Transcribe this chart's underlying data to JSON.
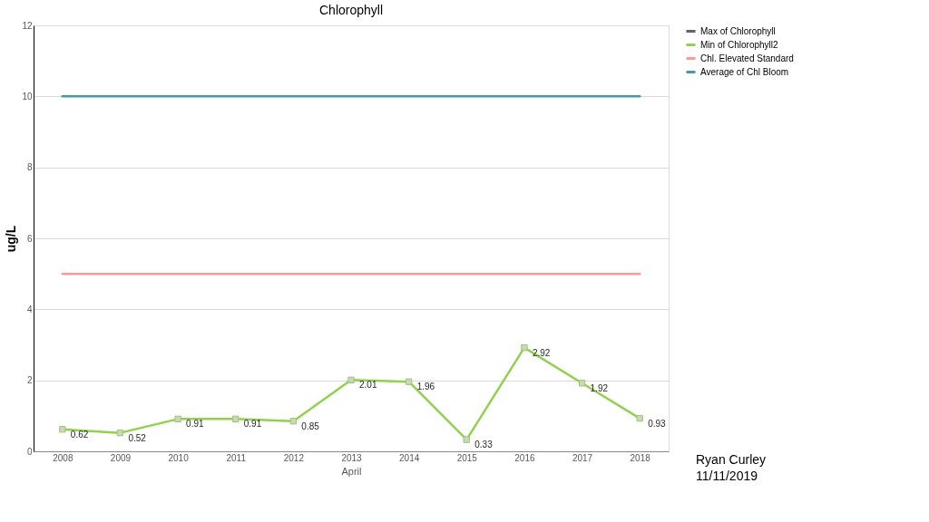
{
  "chart_data": {
    "type": "line",
    "title": "Chlorophyll",
    "xlabel": "April",
    "ylabel": "ug/L",
    "categories": [
      "2008",
      "2009",
      "2010",
      "2011",
      "2012",
      "2013",
      "2014",
      "2015",
      "2016",
      "2017",
      "2018"
    ],
    "series": [
      {
        "name": "Max of Chlorophyll",
        "color": "#6b5a7b",
        "marker": "square",
        "values": [
          null,
          null,
          null,
          null,
          null,
          null,
          null,
          null,
          null,
          null,
          null
        ]
      },
      {
        "name": "Min of Chlorophyll2",
        "color": "#92d050",
        "marker": "square",
        "values": [
          0.62,
          0.52,
          0.91,
          0.91,
          0.85,
          2.01,
          1.96,
          0.33,
          2.92,
          1.92,
          0.93
        ],
        "value_labels": [
          "0.62",
          "0.52",
          "0.91",
          "0.91",
          "0.85",
          "2.01",
          "1.96",
          "0.33",
          "2.92",
          "1.92",
          "0.93"
        ]
      },
      {
        "name": "Chl. Elevated Standard",
        "color": "#ff9999",
        "marker": "none",
        "values": [
          5,
          5,
          5,
          5,
          5,
          5,
          5,
          5,
          5,
          5,
          5
        ]
      },
      {
        "name": "Average of Chl Bloom",
        "color": "#4a9aa5",
        "marker": "none",
        "values": [
          10,
          10,
          10,
          10,
          10,
          10,
          10,
          10,
          10,
          10,
          10
        ]
      }
    ],
    "ylim": [
      0,
      12
    ],
    "yticks": [
      0,
      2,
      4,
      6,
      8,
      10,
      12
    ],
    "grid": "y",
    "legend": "right",
    "line_style": "solid",
    "annotations": [
      "Ryan Curley",
      "11/11/2019"
    ]
  }
}
